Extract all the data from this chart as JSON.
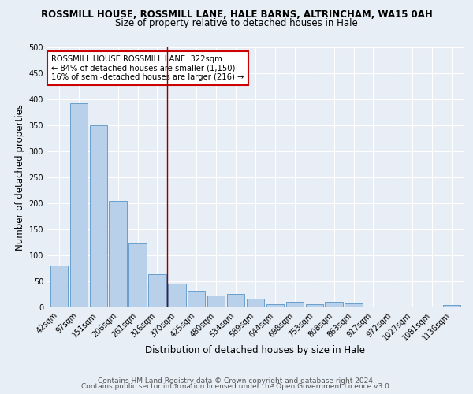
{
  "title_line1": "ROSSMILL HOUSE, ROSSMILL LANE, HALE BARNS, ALTRINCHAM, WA15 0AH",
  "title_line2": "Size of property relative to detached houses in Hale",
  "xlabel": "Distribution of detached houses by size in Hale",
  "ylabel": "Number of detached properties",
  "bar_labels": [
    "42sqm",
    "97sqm",
    "151sqm",
    "206sqm",
    "261sqm",
    "316sqm",
    "370sqm",
    "425sqm",
    "480sqm",
    "534sqm",
    "589sqm",
    "644sqm",
    "698sqm",
    "753sqm",
    "808sqm",
    "863sqm",
    "917sqm",
    "972sqm",
    "1027sqm",
    "1081sqm",
    "1136sqm"
  ],
  "bar_values": [
    80,
    393,
    350,
    204,
    123,
    63,
    45,
    32,
    23,
    26,
    16,
    6,
    10,
    6,
    10,
    8,
    2,
    1,
    1,
    1,
    4
  ],
  "bar_color": "#b8d0ea",
  "bar_edgecolor": "#6aA0cc",
  "bg_color": "#e8eef6",
  "grid_color": "#ffffff",
  "vline_x": 5.5,
  "vline_color": "#8b0000",
  "annotation_text": "ROSSMILL HOUSE ROSSMILL LANE: 322sqm\n← 84% of detached houses are smaller (1,150)\n16% of semi-detached houses are larger (216) →",
  "annotation_box_color": "#ffffff",
  "annotation_box_edgecolor": "#cc0000",
  "ylim": [
    0,
    500
  ],
  "yticks": [
    0,
    50,
    100,
    150,
    200,
    250,
    300,
    350,
    400,
    450,
    500
  ],
  "footer_line1": "Contains HM Land Registry data © Crown copyright and database right 2024.",
  "footer_line2": "Contains public sector information licensed under the Open Government Licence v3.0.",
  "title_fontsize": 8.5,
  "subtitle_fontsize": 8.5,
  "axis_label_fontsize": 8.5,
  "tick_fontsize": 7.0,
  "annotation_fontsize": 7.2,
  "footer_fontsize": 6.5
}
